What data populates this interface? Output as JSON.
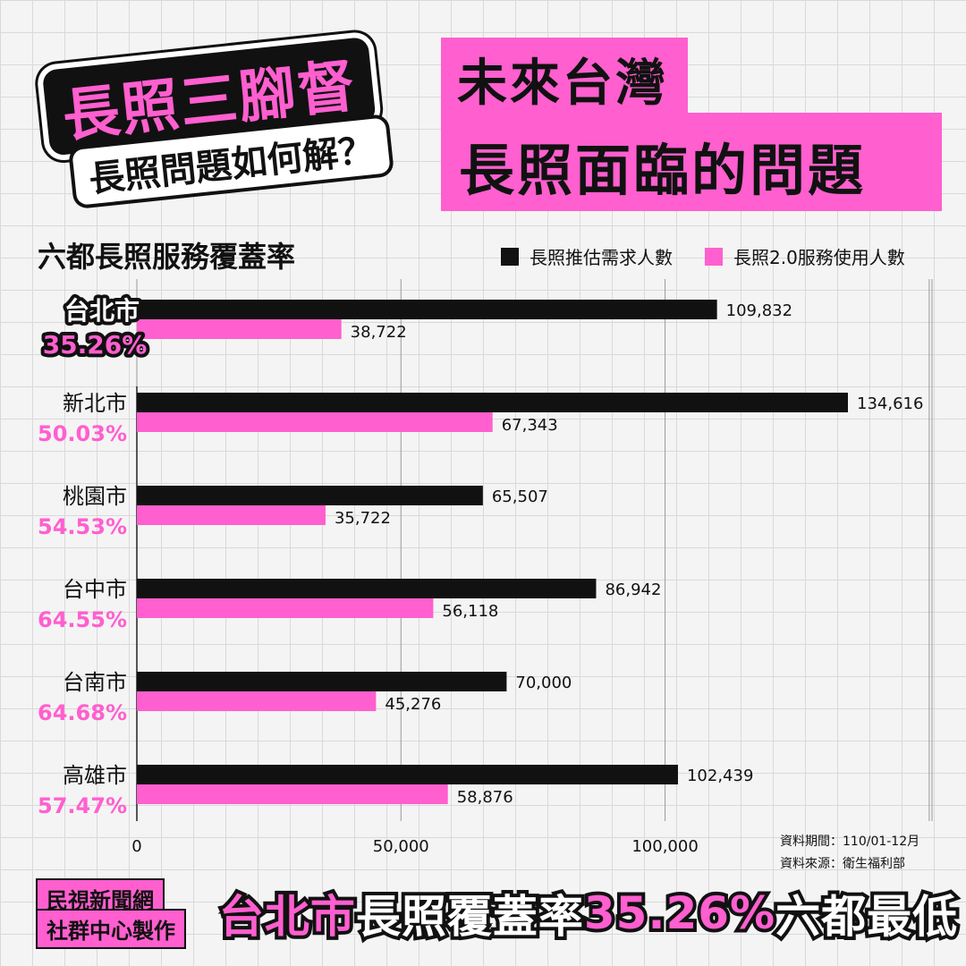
{
  "headline": {
    "main": "長照三腳督",
    "sub": "長照問題如何解？"
  },
  "title": {
    "line1": "未來台灣",
    "line2": "長照面臨的問題"
  },
  "chart_title": "六都長照服務覆蓋率",
  "legend": {
    "demand_label": "長照推估需求人數",
    "usage_label": "長照2.0服務使用人數"
  },
  "colors": {
    "demand": "#111111",
    "usage": "#ff5fcf",
    "accent": "#ff5fcf"
  },
  "chart_data": {
    "type": "bar",
    "orientation": "horizontal",
    "title": "六都長照服務覆蓋率",
    "categories": [
      "台北市",
      "新北市",
      "桃園市",
      "台中市",
      "台南市",
      "高雄市"
    ],
    "coverage_rates": [
      "35.26%",
      "50.03%",
      "54.53%",
      "64.55%",
      "64.68%",
      "57.47%"
    ],
    "series": [
      {
        "name": "長照推估需求人數",
        "values": [
          109832,
          134616,
          65507,
          86942,
          70000,
          102439
        ],
        "labels": [
          "109,832",
          "134,616",
          "65,507",
          "86,942",
          "70,000",
          "102,439"
        ]
      },
      {
        "name": "長照2.0服務使用人數",
        "values": [
          38722,
          67343,
          35722,
          56118,
          45276,
          58876
        ],
        "labels": [
          "38,722",
          "67,343",
          "35,722",
          "56,118",
          "45,276",
          "58,876"
        ]
      }
    ],
    "xlim": [
      0,
      150000
    ],
    "xticks": [
      0,
      50000,
      100000
    ],
    "xtick_labels": [
      "0",
      "50,000",
      "100,000"
    ],
    "grid": true,
    "legend_position": "top-right",
    "highlight_category": "台北市"
  },
  "notes": {
    "period": "資料期間：110/01-12月",
    "source": "資料來源：衛生福利部"
  },
  "credit": {
    "line1": "民視新聞網",
    "line2": "社群中心製作"
  },
  "banner": {
    "part1": "台北市",
    "part2": "長照覆蓋率",
    "part3": "35.26%",
    "part4": "六都最低"
  }
}
